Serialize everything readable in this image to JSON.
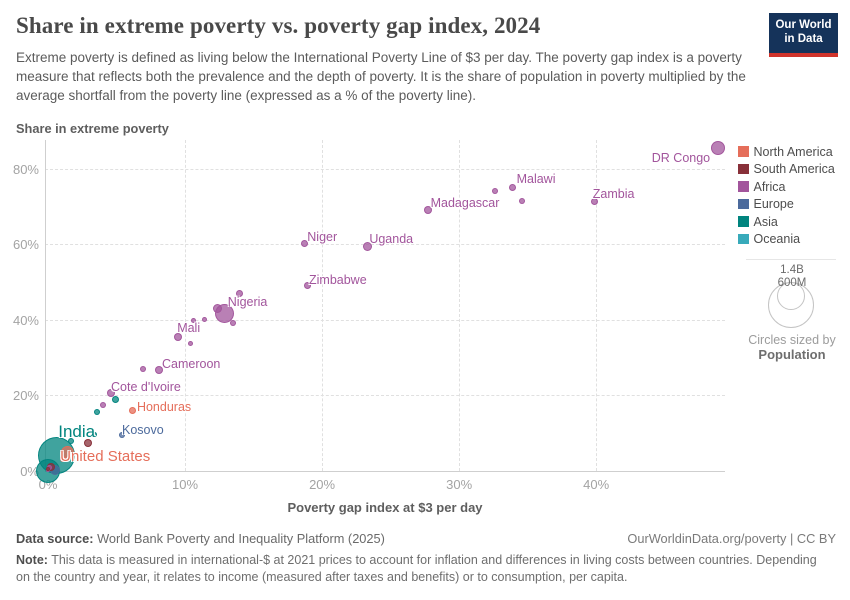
{
  "header": {
    "title": "Share in extreme poverty vs. poverty gap index, 2024",
    "subtitle": "Extreme poverty is defined as living below the International Poverty Line of $3 per day. The poverty gap index is a poverty measure that reflects both the prevalence and the depth of poverty. It is the share of population in poverty multiplied by the average shortfall from the poverty line (expressed as a % of the poverty line).",
    "logo": {
      "line1": "Our World",
      "line2": "in Data"
    }
  },
  "chart_data": {
    "type": "scatter",
    "title": "Share in extreme poverty vs. poverty gap index, 2024",
    "xlabel": "Poverty gap index at $3 per day",
    "ylabel": "Share in extreme poverty",
    "x_axis": {
      "ticks": [
        0,
        10,
        20,
        30,
        40
      ],
      "tick_suffix": "%",
      "min": 0,
      "max": 49.4
    },
    "y_axis": {
      "ticks": [
        0,
        20,
        40,
        60,
        80
      ],
      "tick_suffix": "%",
      "min": 0,
      "max": 87.6
    },
    "grid": true,
    "legend_position": "right",
    "point_unit": "x = poverty gap index (%), y = share in extreme poverty (%), r = bubble radius px (sized by population)",
    "series": [
      {
        "name": "Africa",
        "color": "#A2559C",
        "points": [
          {
            "country": "DR Congo",
            "x": 48.9,
            "y": 85.4,
            "r": 7,
            "label": {
              "dx": -8,
              "dy": 3,
              "anchor": "end"
            }
          },
          {
            "country": "Malawi",
            "x": 33.9,
            "y": 75.1,
            "r": 3.5,
            "label": {
              "dx": 4,
              "dy": -15
            }
          },
          {
            "x": 32.6,
            "y": 74.1,
            "r": 3
          },
          {
            "x": 34.6,
            "y": 71.4,
            "r": 3
          },
          {
            "country": "Zambia",
            "x": 39.9,
            "y": 71.4,
            "r": 3.5,
            "label": {
              "dx": -2,
              "dy": -14
            }
          },
          {
            "country": "Madagascar",
            "x": 27.7,
            "y": 69.0,
            "r": 4,
            "label": {
              "dx": 3,
              "dy": -14
            }
          },
          {
            "country": "Niger",
            "x": 18.7,
            "y": 60.3,
            "r": 3.5,
            "label": {
              "dx": 3,
              "dy": -13
            }
          },
          {
            "country": "Uganda",
            "x": 23.3,
            "y": 59.5,
            "r": 4.5,
            "label": {
              "dx": 2,
              "dy": -14
            }
          },
          {
            "country": "Zimbabwe",
            "x": 18.9,
            "y": 49.2,
            "r": 3.5,
            "label": {
              "dx": 2,
              "dy": -12
            }
          },
          {
            "x": 14.0,
            "y": 47.1,
            "r": 3.5
          },
          {
            "country": "Nigeria",
            "x": 12.9,
            "y": 41.8,
            "r": 9.5,
            "label": {
              "dx": 3,
              "dy": -18
            }
          },
          {
            "x": 12.4,
            "y": 43.1,
            "r": 4.5
          },
          {
            "x": 13.5,
            "y": 39.2,
            "r": 3
          },
          {
            "x": 11.4,
            "y": 40.2,
            "r": 2.5
          },
          {
            "x": 10.6,
            "y": 39.7,
            "r": 2.5
          },
          {
            "country": "Mali",
            "x": 9.5,
            "y": 35.5,
            "r": 4,
            "label": {
              "dx": -1,
              "dy": -16
            }
          },
          {
            "x": 10.4,
            "y": 33.8,
            "r": 2.5
          },
          {
            "country": "Cameroon",
            "x": 8.1,
            "y": 26.7,
            "r": 4,
            "label": {
              "dx": 3,
              "dy": -13
            }
          },
          {
            "x": 6.9,
            "y": 27.0,
            "r": 3
          },
          {
            "country": "Cote d'Ivoire",
            "x": 4.6,
            "y": 20.6,
            "r": 4,
            "label": {
              "dx": 0,
              "dy": -13
            }
          },
          {
            "x": 4.0,
            "y": 17.5,
            "r": 3
          },
          {
            "x": 0.1,
            "y": 0.9,
            "r": 2.5
          },
          {
            "x": 0.0,
            "y": 0.2,
            "r": 2
          }
        ]
      },
      {
        "name": "Asia",
        "color": "#00847E",
        "points": [
          {
            "country": "India",
            "x": 0.6,
            "y": 4.2,
            "r": 18.5,
            "label": {
              "dx": 2,
              "dy": -33,
              "size": "lg"
            }
          },
          {
            "x": 0.0,
            "y": 0.0,
            "r": 12
          },
          {
            "x": 1.7,
            "y": 7.9,
            "r": 3
          },
          {
            "x": 3.4,
            "y": 9.6,
            "r": 2.5
          },
          {
            "x": 3.6,
            "y": 15.6,
            "r": 3
          },
          {
            "x": 4.9,
            "y": 18.8,
            "r": 3.5
          }
        ]
      },
      {
        "name": "North America",
        "color": "#E56E5A",
        "points": [
          {
            "country": "United States",
            "x": 1.4,
            "y": 4.8,
            "r": 6.5,
            "label": {
              "dx": -7,
              "dy": -5,
              "size": "md"
            }
          },
          {
            "country": "Honduras",
            "x": 6.2,
            "y": 15.9,
            "r": 3.5,
            "label": {
              "dx": 4,
              "dy": -11
            }
          },
          {
            "x": 2.5,
            "y": 9.8,
            "r": 3
          },
          {
            "x": 1.1,
            "y": 3.1,
            "r": 3
          }
        ]
      },
      {
        "name": "South America",
        "color": "#883039",
        "points": [
          {
            "x": 2.9,
            "y": 7.4,
            "r": 4
          },
          {
            "x": 0.2,
            "y": 1.1,
            "r": 4
          },
          {
            "x": 0.0,
            "y": 0.5,
            "r": 2
          }
        ]
      },
      {
        "name": "Europe",
        "color": "#4C6A9C",
        "points": [
          {
            "country": "Kosovo",
            "x": 5.4,
            "y": 9.5,
            "r": 3,
            "label": {
              "dx": 0,
              "dy": -12
            }
          },
          {
            "x": 0.5,
            "y": 0.2,
            "r": 5
          }
        ]
      },
      {
        "name": "Oceania",
        "color": "#38AABA",
        "points": []
      }
    ]
  },
  "legend": {
    "items": [
      {
        "label": "North America",
        "color": "#E56E5A"
      },
      {
        "label": "South America",
        "color": "#883039"
      },
      {
        "label": "Africa",
        "color": "#A2559C"
      },
      {
        "label": "Europe",
        "color": "#4C6A9C"
      },
      {
        "label": "Asia",
        "color": "#00847E"
      },
      {
        "label": "Oceania",
        "color": "#38AABA"
      }
    ]
  },
  "size_legend": {
    "big_label": "1.4B",
    "small_label": "600M",
    "caption_line1": "Circles sized by",
    "caption_line2": "Population"
  },
  "axes_titles": {
    "y": "Share in extreme poverty",
    "x": "Poverty gap index at $3 per day"
  },
  "footer": {
    "source_label": "Data source:",
    "source_text": " World Bank Poverty and Inequality Platform (2025)",
    "link_text": "OurWorldinData.org/poverty | CC BY",
    "note_label": "Note:",
    "note_text": " This data is measured in international-$ at 2021 prices to account for inflation and differences in living costs between countries. Depending on the country and year, it relates to income (measured after taxes and benefits) or to consumption, per capita."
  }
}
